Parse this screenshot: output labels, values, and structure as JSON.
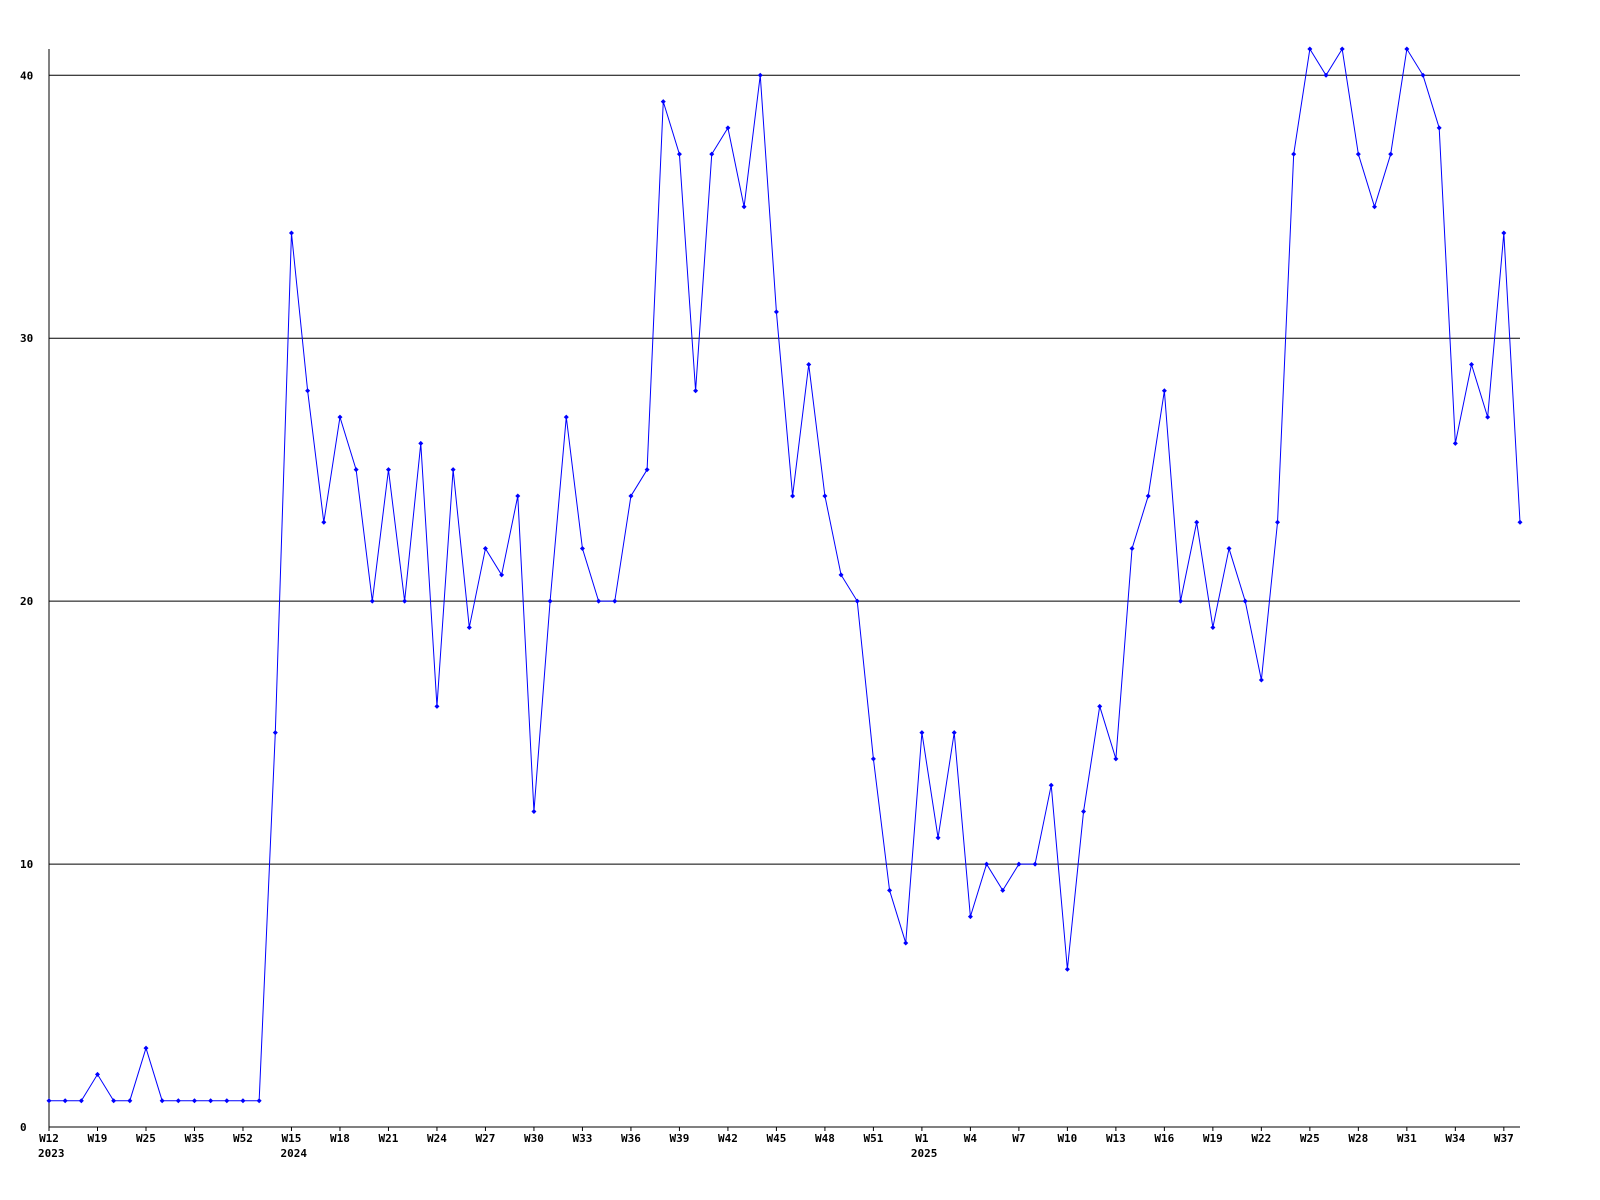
{
  "chart_data": {
    "type": "line",
    "categories": [
      "W12",
      null,
      null,
      "W19",
      null,
      null,
      "W25",
      null,
      null,
      "W35",
      null,
      null,
      "W52",
      null,
      null,
      "W15",
      null,
      null,
      "W18",
      null,
      null,
      "W21",
      null,
      null,
      "W24",
      null,
      null,
      "W27",
      null,
      null,
      "W30",
      null,
      null,
      "W33",
      null,
      null,
      "W36",
      null,
      null,
      "W39",
      null,
      null,
      "W42",
      null,
      null,
      "W45",
      null,
      null,
      "W48",
      null,
      null,
      "W51",
      null,
      null,
      "W1",
      null,
      null,
      "W4",
      null,
      null,
      "W7",
      null,
      null,
      "W10",
      null,
      null,
      "W13",
      null,
      null,
      "W16",
      null,
      null,
      "W19",
      null,
      null,
      "W22",
      null,
      null,
      "W25",
      null,
      null,
      "W28",
      null,
      null,
      "W31",
      null,
      null,
      "W34",
      null,
      null,
      "W37",
      null
    ],
    "category_years": [
      "2023",
      null,
      null,
      null,
      null,
      null,
      null,
      null,
      null,
      null,
      null,
      null,
      null,
      null,
      null,
      "2024",
      null,
      null,
      null,
      null,
      null,
      null,
      null,
      null,
      null,
      null,
      null,
      null,
      null,
      null,
      null,
      null,
      null,
      null,
      null,
      null,
      null,
      null,
      null,
      null,
      null,
      null,
      null,
      null,
      null,
      null,
      null,
      null,
      null,
      null,
      null,
      null,
      null,
      null,
      "2025",
      null,
      null,
      null,
      null,
      null,
      null,
      null,
      null,
      null,
      null,
      null,
      null,
      null,
      null,
      null,
      null,
      null,
      null,
      null,
      null,
      null,
      null,
      null,
      null,
      null,
      null,
      null,
      null,
      null,
      null,
      null,
      null,
      null,
      null,
      null,
      null,
      null
    ],
    "values": [
      1,
      1,
      1,
      2,
      1,
      1,
      3,
      1,
      1,
      1,
      1,
      1,
      1,
      1,
      15,
      34,
      28,
      23,
      27,
      25,
      20,
      25,
      20,
      26,
      16,
      25,
      19,
      22,
      21,
      24,
      12,
      20,
      27,
      22,
      20,
      20,
      24,
      25,
      39,
      37,
      28,
      37,
      38,
      35,
      40,
      31,
      24,
      29,
      24,
      21,
      20,
      14,
      9,
      7,
      15,
      11,
      15,
      8,
      10,
      9,
      10,
      10,
      13,
      6,
      12,
      16,
      14,
      22,
      24,
      28,
      20,
      23,
      19,
      22,
      20,
      17,
      23,
      37,
      41,
      40,
      41,
      37,
      35,
      37,
      41,
      40,
      38,
      26,
      29,
      27,
      34,
      23
    ],
    "color": "#0000ff",
    "ylim": [
      0,
      41
    ],
    "yticks": [
      0,
      10,
      20,
      30,
      40
    ],
    "grid": true
  }
}
